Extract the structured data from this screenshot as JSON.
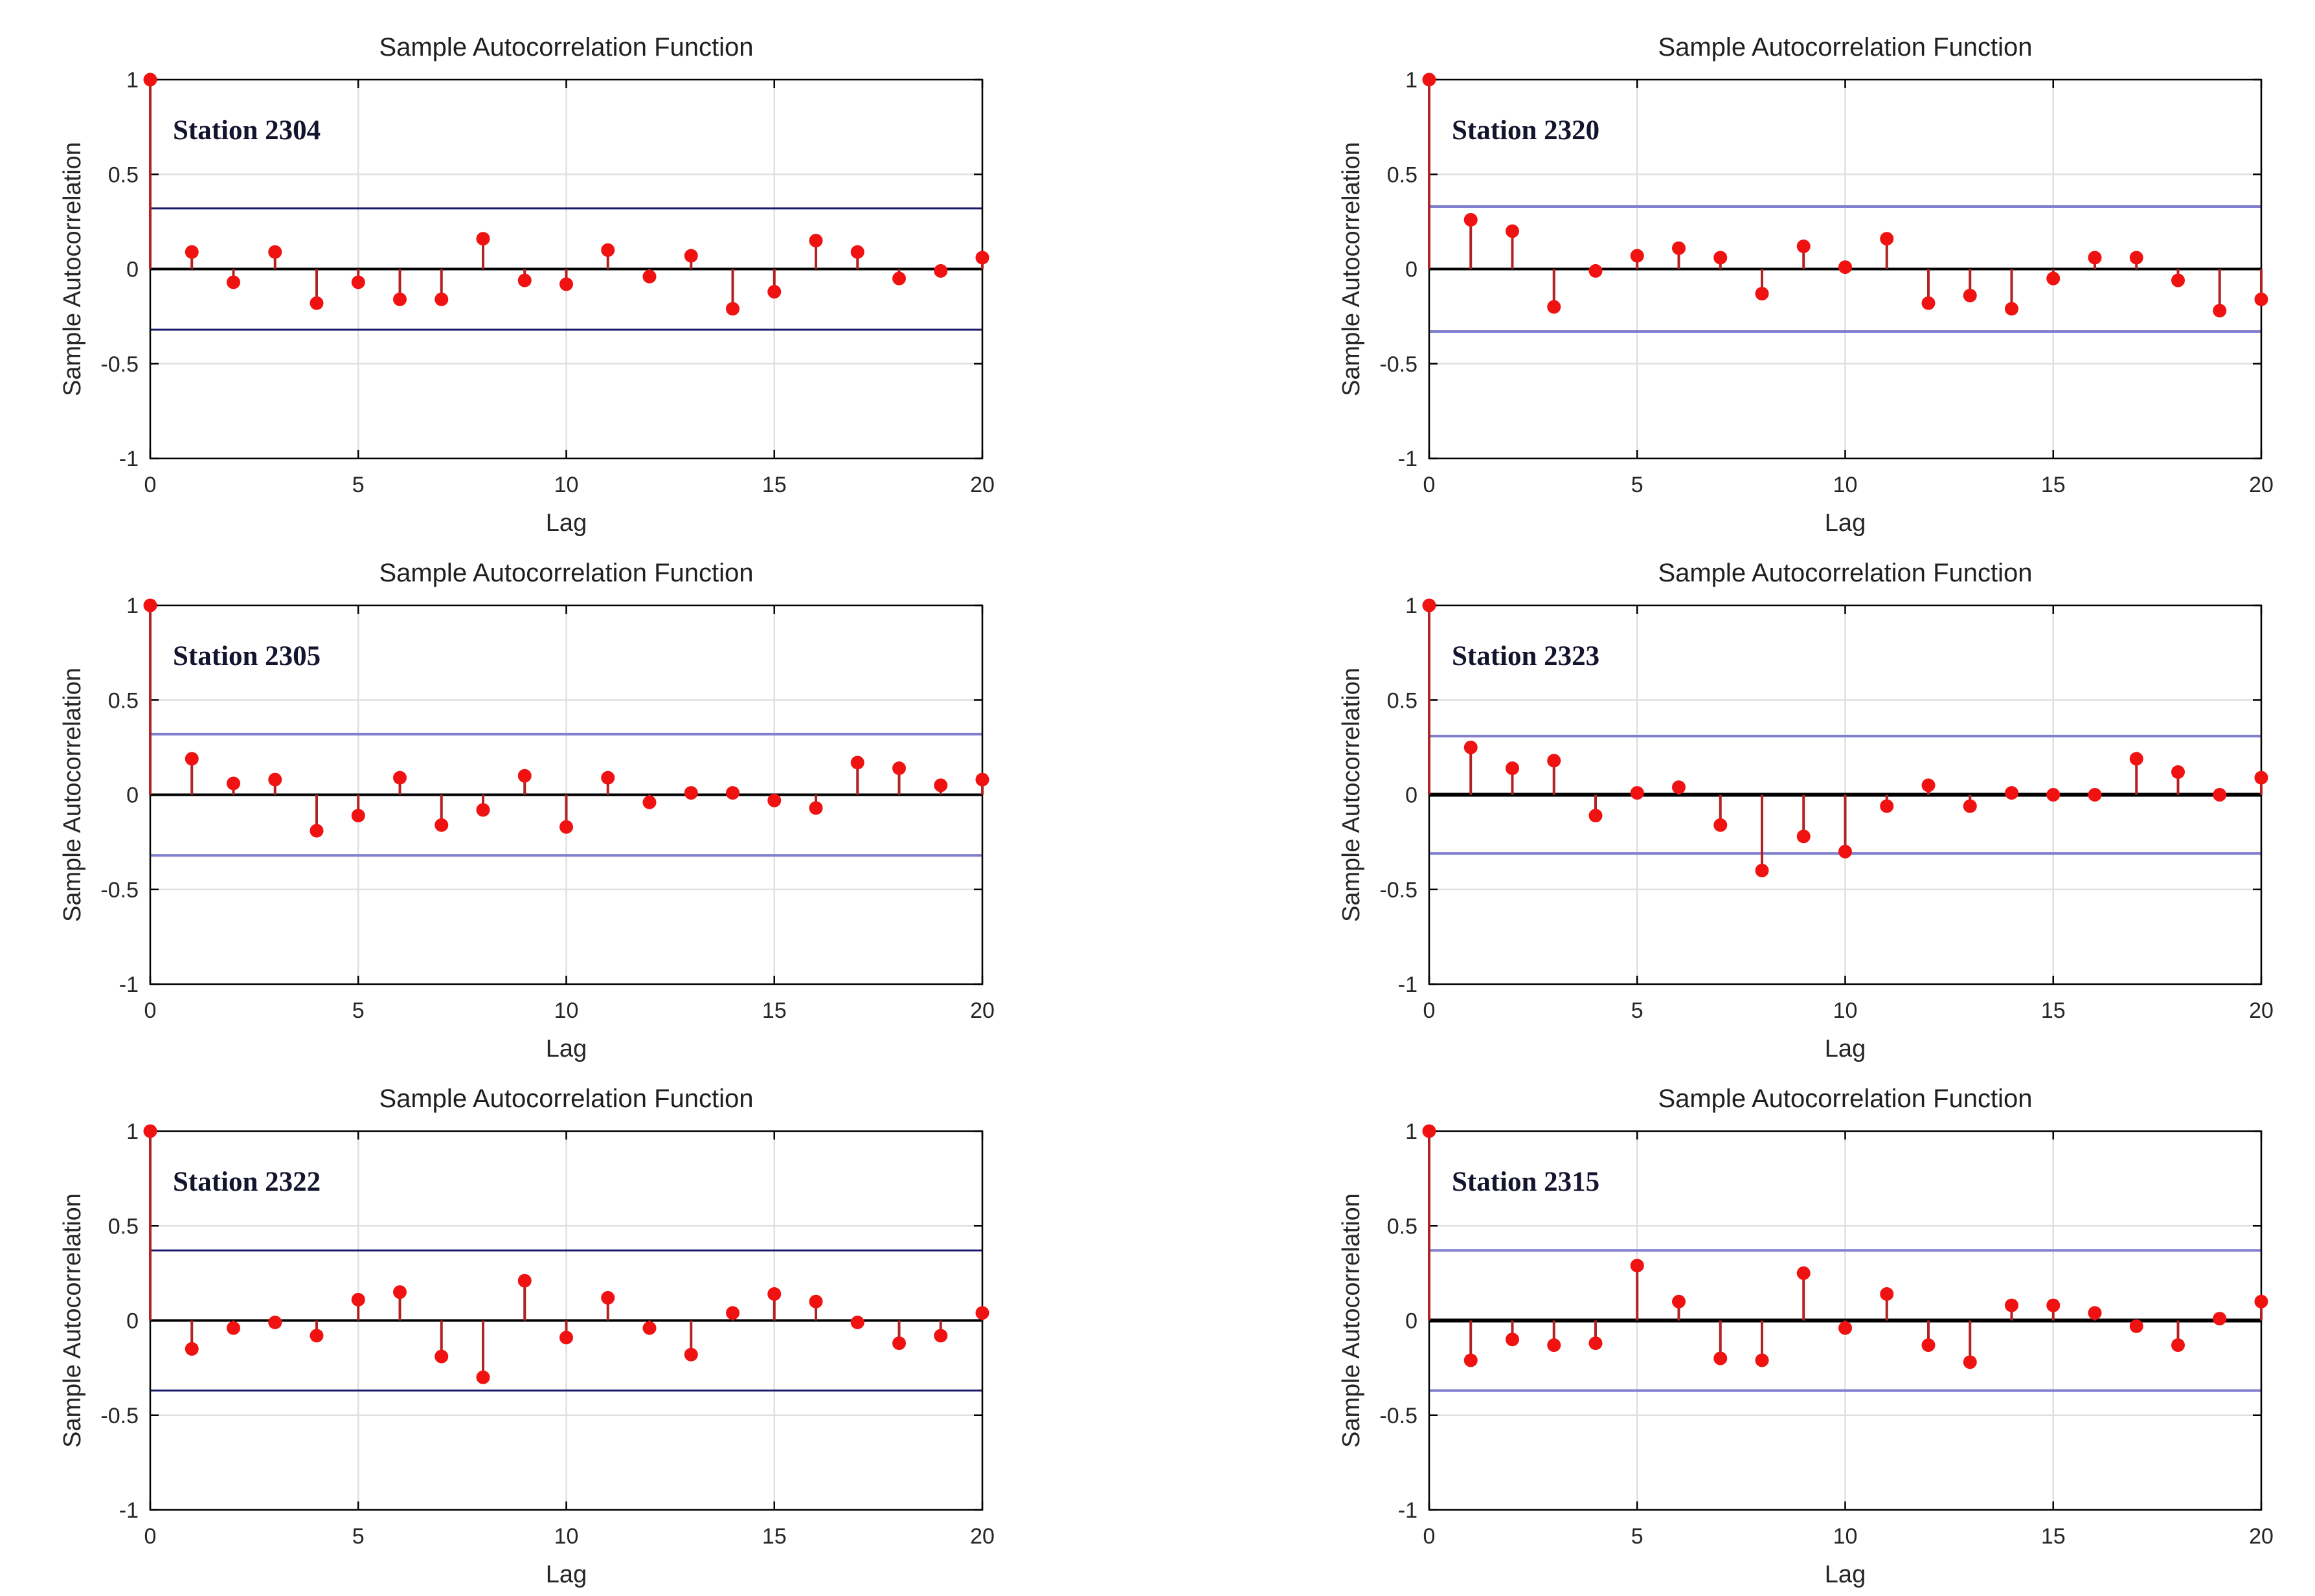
{
  "page": {
    "background": "#ffffff",
    "description": "Grid of six sample autocorrelation function plots for six stations"
  },
  "colors": {
    "axis": "#000000",
    "text": "#262626",
    "title_text": "#1f1f1f",
    "station_text": "#14142e",
    "gridline": "#e0e0e0",
    "zero_line": "#000000",
    "stem": "#b22222",
    "marker": "#f01111",
    "navy_bound": "#1b1b6e",
    "slate_bound": "#8080cf",
    "background": "#ffffff"
  },
  "chart_data": [
    {
      "type": "stem",
      "title": "Sample Autocorrelation Function",
      "station_label": "Station 2304",
      "xlabel": "Lag",
      "ylabel": "Sample Autocorrelation",
      "xlim": [
        0,
        20
      ],
      "ylim": [
        -1,
        1
      ],
      "xticks": [
        0,
        5,
        10,
        15,
        20
      ],
      "yticks": [
        1,
        0.5,
        0,
        -0.5,
        -1
      ],
      "grid": true,
      "legend": "none",
      "lags": [
        0,
        1,
        2,
        3,
        4,
        5,
        6,
        7,
        8,
        9,
        10,
        11,
        12,
        13,
        14,
        15,
        16,
        17,
        18,
        19,
        20
      ],
      "acf_values": [
        1.0,
        0.09,
        -0.07,
        0.09,
        -0.18,
        -0.07,
        -0.16,
        -0.16,
        0.16,
        -0.06,
        -0.08,
        0.1,
        -0.04,
        0.07,
        -0.21,
        -0.12,
        0.15,
        0.09,
        -0.05,
        -0.01,
        0.06
      ],
      "confidence_bound": 0.32,
      "bound_style": "navy",
      "bound_width": 3,
      "zero_line_width": 4
    },
    {
      "type": "stem",
      "title": "Sample Autocorrelation Function",
      "station_label": "Station 2320",
      "xlabel": "Lag",
      "ylabel": "Sample Autocorrelation",
      "xlim": [
        0,
        20
      ],
      "ylim": [
        -1,
        1
      ],
      "xticks": [
        0,
        5,
        10,
        15,
        20
      ],
      "yticks": [
        1,
        0.5,
        0,
        -0.5,
        -1
      ],
      "grid": true,
      "legend": "none",
      "lags": [
        0,
        1,
        2,
        3,
        4,
        5,
        6,
        7,
        8,
        9,
        10,
        11,
        12,
        13,
        14,
        15,
        16,
        17,
        18,
        19,
        20
      ],
      "acf_values": [
        1.0,
        0.26,
        0.2,
        -0.2,
        -0.01,
        0.07,
        0.11,
        0.06,
        -0.13,
        0.12,
        0.01,
        0.16,
        -0.18,
        -0.14,
        -0.21,
        -0.05,
        0.06,
        0.06,
        -0.06,
        -0.22,
        -0.16
      ],
      "confidence_bound": 0.33,
      "bound_style": "slate",
      "bound_width": 4,
      "zero_line_width": 4
    },
    {
      "type": "stem",
      "title": "Sample Autocorrelation Function",
      "station_label": "Station 2305",
      "xlabel": "Lag",
      "ylabel": "Sample Autocorrelation",
      "xlim": [
        0,
        20
      ],
      "ylim": [
        -1,
        1
      ],
      "xticks": [
        0,
        5,
        10,
        15,
        20
      ],
      "yticks": [
        1,
        0.5,
        0,
        -0.5,
        -1
      ],
      "grid": true,
      "legend": "none",
      "lags": [
        0,
        1,
        2,
        3,
        4,
        5,
        6,
        7,
        8,
        9,
        10,
        11,
        12,
        13,
        14,
        15,
        16,
        17,
        18,
        19,
        20
      ],
      "acf_values": [
        1.0,
        0.19,
        0.06,
        0.08,
        -0.19,
        -0.11,
        0.09,
        -0.16,
        -0.08,
        0.1,
        -0.17,
        0.09,
        -0.04,
        0.01,
        0.01,
        -0.03,
        -0.07,
        0.17,
        0.14,
        0.05,
        0.08
      ],
      "confidence_bound": 0.32,
      "bound_style": "slate",
      "bound_width": 4,
      "zero_line_width": 4
    },
    {
      "type": "stem",
      "title": "Sample Autocorrelation Function",
      "station_label": "Station 2323",
      "xlabel": "Lag",
      "ylabel": "Sample Autocorrelation",
      "xlim": [
        0,
        20
      ],
      "ylim": [
        -1,
        1
      ],
      "xticks": [
        0,
        5,
        10,
        15,
        20
      ],
      "yticks": [
        1,
        0.5,
        0,
        -0.5,
        -1
      ],
      "grid": true,
      "legend": "none",
      "lags": [
        0,
        1,
        2,
        3,
        4,
        5,
        6,
        7,
        8,
        9,
        10,
        11,
        12,
        13,
        14,
        15,
        16,
        17,
        18,
        19,
        20
      ],
      "acf_values": [
        1.0,
        0.25,
        0.14,
        0.18,
        -0.11,
        0.01,
        0.04,
        -0.16,
        -0.4,
        -0.22,
        -0.3,
        -0.06,
        0.05,
        -0.06,
        0.01,
        0.0,
        0.0,
        0.19,
        0.12,
        0.0,
        0.09
      ],
      "confidence_bound": 0.31,
      "bound_style": "slate",
      "bound_width": 4,
      "zero_line_width": 6
    },
    {
      "type": "stem",
      "title": "Sample Autocorrelation Function",
      "station_label": "Station 2322",
      "xlabel": "Lag",
      "ylabel": "Sample Autocorrelation",
      "xlim": [
        0,
        20
      ],
      "ylim": [
        -1,
        1
      ],
      "xticks": [
        0,
        5,
        10,
        15,
        20
      ],
      "yticks": [
        1,
        0.5,
        0,
        -0.5,
        -1
      ],
      "grid": true,
      "legend": "none",
      "lags": [
        0,
        1,
        2,
        3,
        4,
        5,
        6,
        7,
        8,
        9,
        10,
        11,
        12,
        13,
        14,
        15,
        16,
        17,
        18,
        19,
        20
      ],
      "acf_values": [
        1.0,
        -0.15,
        -0.04,
        -0.01,
        -0.08,
        0.11,
        0.15,
        -0.19,
        -0.3,
        0.21,
        -0.09,
        0.12,
        -0.04,
        -0.18,
        0.04,
        0.14,
        0.1,
        -0.01,
        -0.12,
        -0.08,
        0.04
      ],
      "confidence_bound": 0.37,
      "bound_style": "navy",
      "bound_width": 3,
      "zero_line_width": 4
    },
    {
      "type": "stem",
      "title": "Sample Autocorrelation Function",
      "station_label": "Station 2315",
      "xlabel": "Lag",
      "ylabel": "Sample Autocorrelation",
      "xlim": [
        0,
        20
      ],
      "ylim": [
        -1,
        1
      ],
      "xticks": [
        0,
        5,
        10,
        15,
        20
      ],
      "yticks": [
        1,
        0.5,
        0,
        -0.5,
        -1
      ],
      "grid": true,
      "legend": "none",
      "lags": [
        0,
        1,
        2,
        3,
        4,
        5,
        6,
        7,
        8,
        9,
        10,
        11,
        12,
        13,
        14,
        15,
        16,
        17,
        18,
        19,
        20
      ],
      "acf_values": [
        1.0,
        -0.21,
        -0.1,
        -0.13,
        -0.12,
        0.29,
        0.1,
        -0.2,
        -0.21,
        0.25,
        -0.04,
        0.14,
        -0.13,
        -0.22,
        0.08,
        0.08,
        0.04,
        -0.03,
        -0.13,
        0.01,
        0.1
      ],
      "confidence_bound": 0.37,
      "bound_style": "slate",
      "bound_width": 4,
      "zero_line_width": 6
    }
  ]
}
